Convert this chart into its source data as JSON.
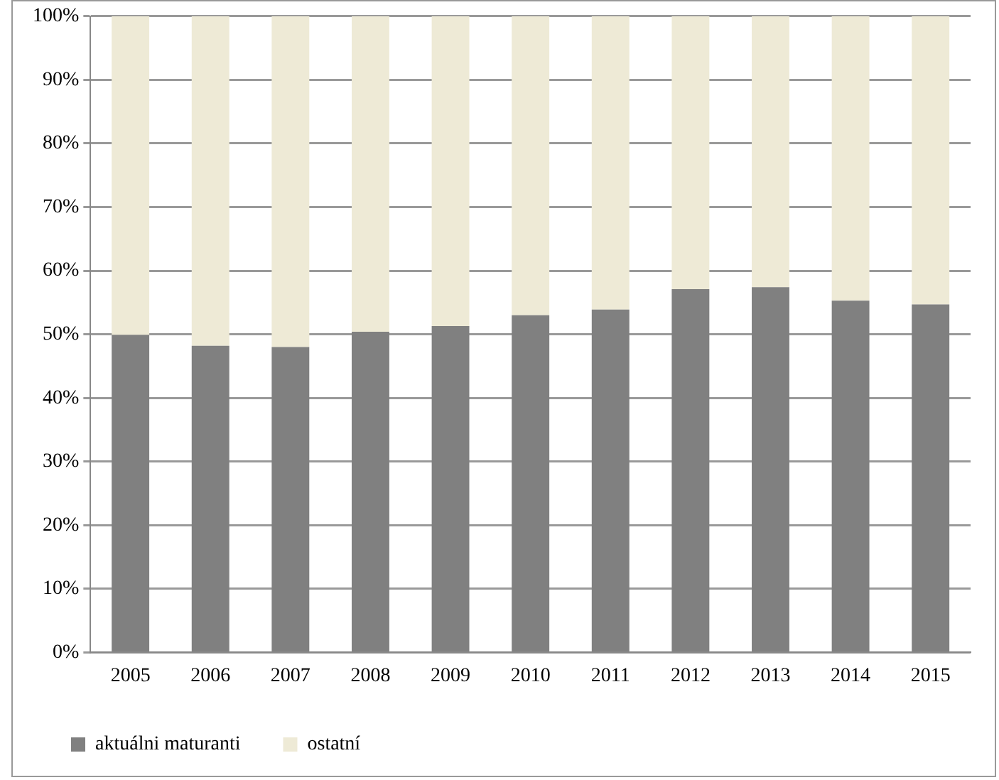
{
  "chart_data": {
    "type": "bar",
    "stacked": true,
    "categories": [
      "2005",
      "2006",
      "2007",
      "2008",
      "2009",
      "2010",
      "2011",
      "2012",
      "2013",
      "2014",
      "2015"
    ],
    "series": [
      {
        "name": "aktuálni maturanti",
        "color": "#808080",
        "values": [
          49.9,
          48.2,
          48.0,
          50.4,
          51.3,
          53.0,
          53.9,
          57.1,
          57.4,
          55.3,
          54.7
        ]
      },
      {
        "name": "ostatní",
        "color": "#eeead6",
        "values": [
          50.1,
          51.8,
          52.0,
          49.6,
          48.7,
          47.0,
          46.1,
          42.9,
          42.6,
          44.7,
          45.3
        ]
      }
    ],
    "ylim": [
      0,
      100
    ],
    "yticks": [
      {
        "value": 0,
        "label": "0%"
      },
      {
        "value": 10,
        "label": "10%"
      },
      {
        "value": 20,
        "label": "20%"
      },
      {
        "value": 30,
        "label": "30%"
      },
      {
        "value": 40,
        "label": "40%"
      },
      {
        "value": 50,
        "label": "50%"
      },
      {
        "value": 60,
        "label": "60%"
      },
      {
        "value": 70,
        "label": "70%"
      },
      {
        "value": 80,
        "label": "80%"
      },
      {
        "value": 90,
        "label": "90%"
      },
      {
        "value": 100,
        "label": "100%"
      }
    ],
    "grid": "y",
    "legend": "bottom left"
  }
}
